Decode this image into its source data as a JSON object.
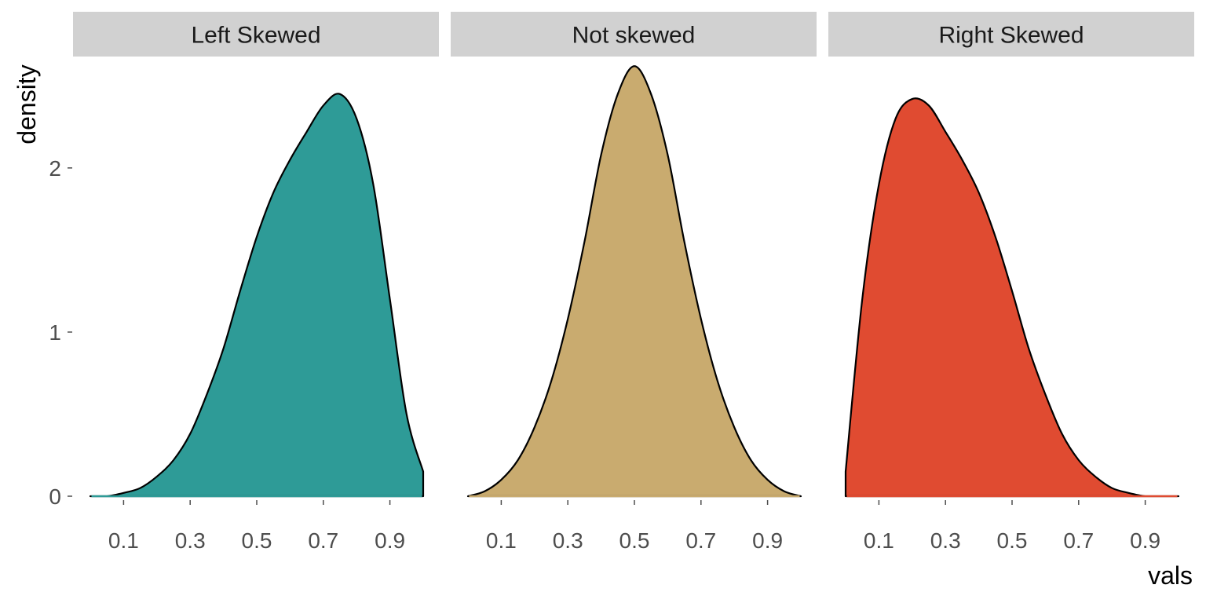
{
  "chart_data": {
    "type": "area",
    "xlabel": "vals",
    "ylabel": "density",
    "xlim": [
      0,
      1
    ],
    "ylim": [
      0,
      2.65
    ],
    "x_ticks": [
      0.1,
      0.3,
      0.5,
      0.7,
      0.9
    ],
    "x_tick_labels": [
      "0.1",
      "0.3",
      "0.5",
      "0.7",
      "0.9"
    ],
    "y_ticks": [
      0,
      1,
      2
    ],
    "y_tick_labels": [
      "0",
      "1",
      "2"
    ],
    "grid": false,
    "legend": "none",
    "panels": [
      {
        "name": "Left Skewed",
        "color": "#2e9b97",
        "x": [
          0.0,
          0.05,
          0.1,
          0.15,
          0.2,
          0.25,
          0.3,
          0.35,
          0.4,
          0.45,
          0.5,
          0.55,
          0.6,
          0.65,
          0.7,
          0.75,
          0.8,
          0.85,
          0.9,
          0.95,
          1.0
        ],
        "y": [
          0.0,
          0.0,
          0.02,
          0.05,
          0.12,
          0.22,
          0.38,
          0.62,
          0.9,
          1.25,
          1.58,
          1.85,
          2.05,
          2.22,
          2.38,
          2.45,
          2.3,
          1.9,
          1.2,
          0.5,
          0.15
        ]
      },
      {
        "name": "Not skewed",
        "color": "#c9ab6f",
        "x": [
          0.0,
          0.05,
          0.1,
          0.15,
          0.2,
          0.25,
          0.3,
          0.35,
          0.4,
          0.45,
          0.5,
          0.55,
          0.6,
          0.65,
          0.7,
          0.75,
          0.8,
          0.85,
          0.9,
          0.95,
          1.0
        ],
        "y": [
          0.0,
          0.03,
          0.1,
          0.22,
          0.42,
          0.7,
          1.08,
          1.55,
          2.08,
          2.45,
          2.62,
          2.45,
          2.08,
          1.55,
          1.08,
          0.7,
          0.42,
          0.22,
          0.1,
          0.03,
          0.0
        ]
      },
      {
        "name": "Right Skewed",
        "color": "#e04b31",
        "x": [
          0.0,
          0.05,
          0.1,
          0.15,
          0.2,
          0.25,
          0.3,
          0.35,
          0.4,
          0.45,
          0.5,
          0.55,
          0.6,
          0.65,
          0.7,
          0.75,
          0.8,
          0.85,
          0.9,
          0.95,
          1.0
        ],
        "y": [
          0.15,
          1.2,
          1.9,
          2.3,
          2.42,
          2.38,
          2.22,
          2.05,
          1.85,
          1.58,
          1.25,
          0.9,
          0.62,
          0.38,
          0.22,
          0.12,
          0.05,
          0.02,
          0.0,
          0.0,
          0.0
        ]
      }
    ]
  }
}
